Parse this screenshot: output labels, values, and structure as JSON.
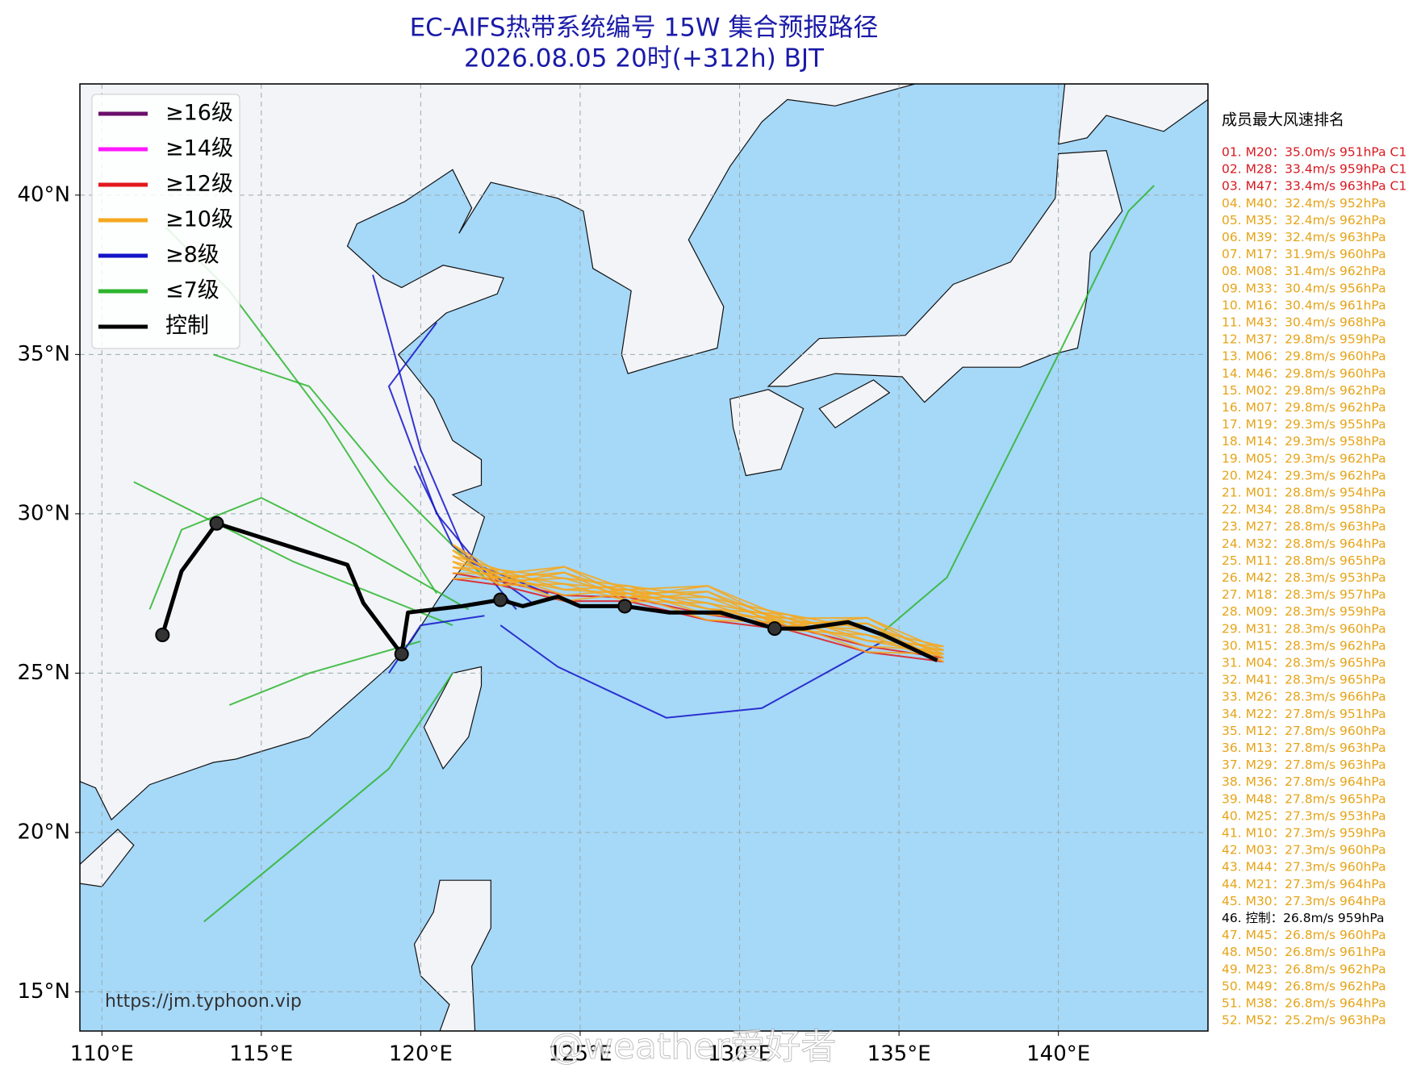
{
  "header": {
    "title": "EC-AIFS热带系统编号 15W 集合预报路径",
    "subtitle": "2026.08.05 20时(+312h) BJT"
  },
  "map": {
    "lonlim": [
      109.31,
      144.69
    ],
    "latlim": [
      13.77,
      43.49
    ],
    "xticks": [
      {
        "value": 110,
        "label": "110°E"
      },
      {
        "value": 115,
        "label": "115°E"
      },
      {
        "value": 120,
        "label": "120°E"
      },
      {
        "value": 125,
        "label": "125°E"
      },
      {
        "value": 130,
        "label": "130°E"
      },
      {
        "value": 135,
        "label": "135°E"
      },
      {
        "value": 140,
        "label": "140°E"
      }
    ],
    "yticks": [
      {
        "value": 15,
        "label": "15°N"
      },
      {
        "value": 20,
        "label": "20°N"
      },
      {
        "value": 25,
        "label": "25°N"
      },
      {
        "value": 30,
        "label": "30°N"
      },
      {
        "value": 35,
        "label": "35°N"
      },
      {
        "value": 40,
        "label": "40°N"
      }
    ],
    "grid": true,
    "ocean_color": "#a6d8f8",
    "land_color": "#f2f4f8",
    "control_track": {
      "color": "#000000",
      "lon": [
        111.9,
        112.5,
        113.6,
        117.7,
        118.2,
        119.4,
        119.6,
        121.3,
        122.5,
        123.2,
        124.3,
        125.0,
        126.4,
        127.8,
        129.4,
        131.1,
        132.0,
        133.4,
        134.5,
        136.2
      ],
      "lat": [
        26.2,
        28.2,
        29.7,
        28.4,
        27.2,
        25.6,
        26.9,
        27.1,
        27.3,
        27.1,
        27.4,
        27.1,
        27.1,
        26.9,
        26.9,
        26.4,
        26.4,
        26.6,
        26.2,
        25.4
      ],
      "marker_lon": [
        111.9,
        113.6,
        119.4,
        122.5,
        126.4,
        131.1
      ],
      "marker_lat": [
        26.2,
        29.7,
        25.6,
        27.3,
        27.1,
        26.4
      ]
    },
    "source": "https://jm.typhoon.vip",
    "watermark": "@weather爱好者"
  },
  "legend": {
    "position": "upper left",
    "entries": [
      {
        "name": "≥16级",
        "color": "#6b0f6b"
      },
      {
        "name": "≥14级",
        "color": "#ff1aff"
      },
      {
        "name": "≥12级",
        "color": "#e3191c"
      },
      {
        "name": "≥10级",
        "color": "#f5a81f"
      },
      {
        "name": "≥8级",
        "color": "#1414c8"
      },
      {
        "name": "≤7级",
        "color": "#2db52d"
      },
      {
        "name": "控制",
        "color": "#000000"
      }
    ]
  },
  "ranking": {
    "title": "成员最大风速排名",
    "items": [
      {
        "text": "01. M20：35.0m/s 951hPa C1",
        "color": "#d71920"
      },
      {
        "text": "02. M28：33.4m/s 959hPa C1",
        "color": "#d71920"
      },
      {
        "text": "03. M47：33.4m/s 963hPa C1",
        "color": "#d71920"
      },
      {
        "text": "04. M40：32.4m/s 952hPa",
        "color": "#e6a419"
      },
      {
        "text": "05. M35：32.4m/s 962hPa",
        "color": "#e6a419"
      },
      {
        "text": "06. M39：32.4m/s 963hPa",
        "color": "#e6a419"
      },
      {
        "text": "07. M17：31.9m/s 960hPa",
        "color": "#e6a419"
      },
      {
        "text": "08. M08：31.4m/s 962hPa",
        "color": "#e6a419"
      },
      {
        "text": "09. M33：30.4m/s 956hPa",
        "color": "#e6a419"
      },
      {
        "text": "10. M16：30.4m/s 961hPa",
        "color": "#e6a419"
      },
      {
        "text": "11. M43：30.4m/s 968hPa",
        "color": "#e6a419"
      },
      {
        "text": "12. M37：29.8m/s 959hPa",
        "color": "#e6a419"
      },
      {
        "text": "13. M06：29.8m/s 960hPa",
        "color": "#e6a419"
      },
      {
        "text": "14. M46：29.8m/s 960hPa",
        "color": "#e6a419"
      },
      {
        "text": "15. M02：29.8m/s 962hPa",
        "color": "#e6a419"
      },
      {
        "text": "16. M07：29.8m/s 962hPa",
        "color": "#e6a419"
      },
      {
        "text": "17. M19：29.3m/s 955hPa",
        "color": "#e6a419"
      },
      {
        "text": "18. M14：29.3m/s 958hPa",
        "color": "#e6a419"
      },
      {
        "text": "19. M05：29.3m/s 962hPa",
        "color": "#e6a419"
      },
      {
        "text": "20. M24：29.3m/s 962hPa",
        "color": "#e6a419"
      },
      {
        "text": "21. M01：28.8m/s 954hPa",
        "color": "#e6a419"
      },
      {
        "text": "22. M34：28.8m/s 958hPa",
        "color": "#e6a419"
      },
      {
        "text": "23. M27：28.8m/s 963hPa",
        "color": "#e6a419"
      },
      {
        "text": "24. M32：28.8m/s 964hPa",
        "color": "#e6a419"
      },
      {
        "text": "25. M11：28.8m/s 965hPa",
        "color": "#e6a419"
      },
      {
        "text": "26. M42：28.3m/s 953hPa",
        "color": "#e6a419"
      },
      {
        "text": "27. M18：28.3m/s 957hPa",
        "color": "#e6a419"
      },
      {
        "text": "28. M09：28.3m/s 959hPa",
        "color": "#e6a419"
      },
      {
        "text": "29. M31：28.3m/s 960hPa",
        "color": "#e6a419"
      },
      {
        "text": "30. M15：28.3m/s 962hPa",
        "color": "#e6a419"
      },
      {
        "text": "31. M04：28.3m/s 965hPa",
        "color": "#e6a419"
      },
      {
        "text": "32. M41：28.3m/s 965hPa",
        "color": "#e6a419"
      },
      {
        "text": "33. M26：28.3m/s 966hPa",
        "color": "#e6a419"
      },
      {
        "text": "34. M22：27.8m/s 951hPa",
        "color": "#e6a419"
      },
      {
        "text": "35. M12：27.8m/s 960hPa",
        "color": "#e6a419"
      },
      {
        "text": "36. M13：27.8m/s 963hPa",
        "color": "#e6a419"
      },
      {
        "text": "37. M29：27.8m/s 963hPa",
        "color": "#e6a419"
      },
      {
        "text": "38. M36：27.8m/s 964hPa",
        "color": "#e6a419"
      },
      {
        "text": "39. M48：27.8m/s 965hPa",
        "color": "#e6a419"
      },
      {
        "text": "40. M25：27.3m/s 953hPa",
        "color": "#e6a419"
      },
      {
        "text": "41. M10：27.3m/s 959hPa",
        "color": "#e6a419"
      },
      {
        "text": "42. M03：27.3m/s 960hPa",
        "color": "#e6a419"
      },
      {
        "text": "43. M44：27.3m/s 960hPa",
        "color": "#e6a419"
      },
      {
        "text": "44. M21：27.3m/s 964hPa",
        "color": "#e6a419"
      },
      {
        "text": "45. M30：27.3m/s 964hPa",
        "color": "#e6a419"
      },
      {
        "text": "46. 控制：26.8m/s 959hPa",
        "color": "#000000"
      },
      {
        "text": "47. M45：26.8m/s 960hPa",
        "color": "#e6a419"
      },
      {
        "text": "48. M50：26.8m/s 961hPa",
        "color": "#e6a419"
      },
      {
        "text": "49. M23：26.8m/s 962hPa",
        "color": "#e6a419"
      },
      {
        "text": "50. M49：26.8m/s 962hPa",
        "color": "#e6a419"
      },
      {
        "text": "51. M38：26.8m/s 964hPa",
        "color": "#e6a419"
      },
      {
        "text": "52. M52：25.2m/s 963hPa",
        "color": "#e6a419"
      }
    ]
  }
}
